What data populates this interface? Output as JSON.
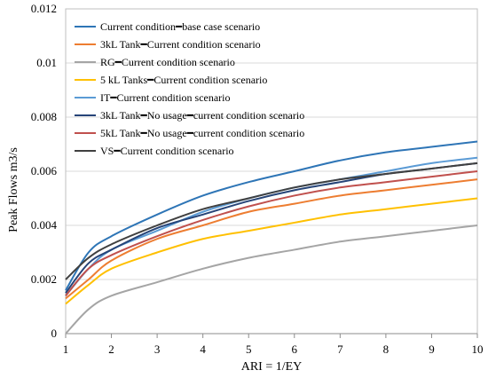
{
  "chart_data": {
    "type": "line",
    "title": "",
    "xlabel": "ARI = 1/EY",
    "ylabel": "Peak Flows m3/s",
    "xlim": [
      1,
      10
    ],
    "ylim": [
      0,
      0.012
    ],
    "x_ticks": [
      "1",
      "2",
      "3",
      "4",
      "5",
      "6",
      "7",
      "8",
      "9",
      "10"
    ],
    "y_ticks": [
      "0",
      "0.002",
      "0.004",
      "0.006",
      "0.008",
      "0.01",
      "0.012"
    ],
    "grid": "horizontal",
    "legend_position": "top-left",
    "x": [
      1,
      1.5,
      2,
      3,
      4,
      5,
      6,
      7,
      8,
      9,
      10
    ],
    "series": [
      {
        "name": "Current condition━base case scenario",
        "color": "#2e75b6",
        "values": [
          0.0016,
          0.003,
          0.0036,
          0.0044,
          0.0051,
          0.0056,
          0.006,
          0.0064,
          0.0067,
          0.0069,
          0.0071
        ]
      },
      {
        "name": "3kL Tank━Current condition scenario",
        "color": "#ed7d31",
        "values": [
          0.0013,
          0.002,
          0.0027,
          0.0035,
          0.004,
          0.0045,
          0.0048,
          0.0051,
          0.0053,
          0.0055,
          0.0057
        ]
      },
      {
        "name": "RG━Current condition scenario",
        "color": "#a5a5a5",
        "values": [
          0.0,
          0.0009,
          0.0014,
          0.0019,
          0.0024,
          0.0028,
          0.0031,
          0.0034,
          0.0036,
          0.0038,
          0.004
        ]
      },
      {
        "name": "5 kL Tanks━Current condition scenario",
        "color": "#ffc000",
        "values": [
          0.0011,
          0.0018,
          0.0024,
          0.003,
          0.0035,
          0.0038,
          0.0041,
          0.0044,
          0.0046,
          0.0048,
          0.005
        ]
      },
      {
        "name": "IT━Current condition scenario",
        "color": "#5b9bd5",
        "values": [
          0.0014,
          0.0024,
          0.0031,
          0.0038,
          0.0045,
          0.005,
          0.0054,
          0.0057,
          0.006,
          0.0063,
          0.0065
        ]
      },
      {
        "name": "3kL Tank━No usage━current condition scenario",
        "color": "#264478",
        "values": [
          0.0015,
          0.0026,
          0.0031,
          0.0039,
          0.0044,
          0.0049,
          0.0053,
          0.0056,
          0.0059,
          0.0061,
          0.0063
        ]
      },
      {
        "name": "5kL Tank━No usage━current condition scenario",
        "color": "#c0504d",
        "values": [
          0.0014,
          0.0024,
          0.0029,
          0.0036,
          0.0042,
          0.0047,
          0.0051,
          0.0054,
          0.0056,
          0.0058,
          0.006
        ]
      },
      {
        "name": "VS━Current condition scenario",
        "color": "#404040",
        "values": [
          0.002,
          0.0028,
          0.0033,
          0.004,
          0.0046,
          0.005,
          0.0054,
          0.0057,
          0.0059,
          0.0061,
          0.0063
        ]
      }
    ]
  }
}
